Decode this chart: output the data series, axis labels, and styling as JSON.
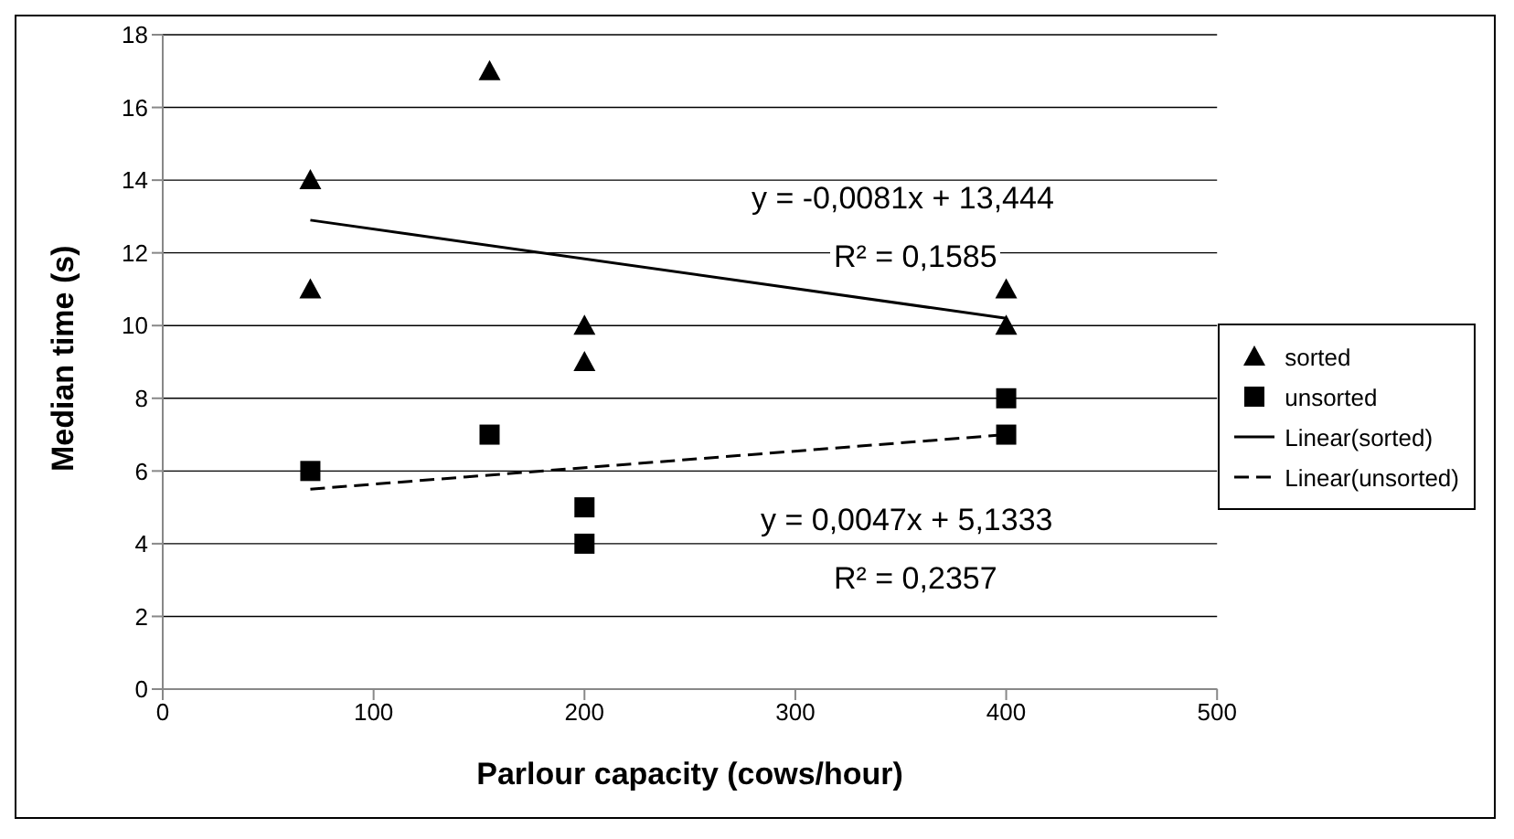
{
  "chart_data": {
    "type": "scatter",
    "xlabel": "Parlour capacity (cows/hour)",
    "ylabel": "Median time (s)",
    "xlim": [
      0,
      500
    ],
    "xticks": [
      0,
      100,
      200,
      300,
      400,
      500
    ],
    "ylim": [
      0,
      18
    ],
    "yticks": [
      0,
      2,
      4,
      6,
      8,
      10,
      12,
      14,
      16,
      18
    ],
    "grid": "y",
    "legend": "right",
    "series": [
      {
        "name": "sorted",
        "color": "#000000",
        "marker": "triangle",
        "x": [
          70,
          70,
          155,
          200,
          200,
          400,
          400
        ],
        "values": [
          14,
          11,
          17,
          10,
          9,
          11,
          10
        ]
      },
      {
        "name": "unsorted",
        "color": "#000000",
        "marker": "square",
        "x": [
          70,
          155,
          200,
          200,
          400,
          400
        ],
        "values": [
          6,
          7,
          5,
          4,
          8,
          7
        ]
      },
      {
        "name": "Linear(sorted)",
        "type": "line",
        "color": "#000000",
        "marker": "none",
        "line_style": "solid",
        "x": [
          70,
          400
        ],
        "values": [
          12.9,
          10.2
        ]
      },
      {
        "name": "Linear(unsorted)",
        "type": "line",
        "color": "#000000",
        "marker": "none",
        "line_style": "dashed",
        "x": [
          70,
          400
        ],
        "values": [
          5.5,
          7.0
        ]
      }
    ],
    "annotations": [
      "y = -0,0081x + 13,444",
      "R² = 0,1585",
      "y = 0,0047x + 5,1333",
      "R² = 0,2357"
    ]
  }
}
